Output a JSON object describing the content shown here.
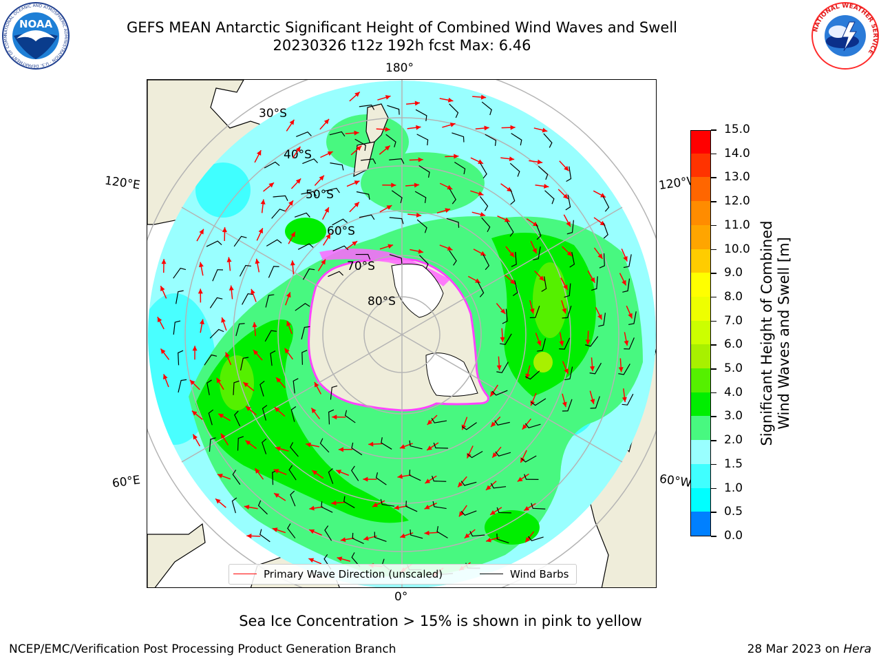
{
  "header": {
    "title_line1": "GEFS MEAN Antarctic Significant Height of Combined Wind Waves and Swell",
    "title_line2": "20230326 t12z 192h fcst   Max: 6.46"
  },
  "logos": {
    "noaa_text": "NOAA",
    "noaa_ring_text": "NATIONAL OCEANIC AND ATMOSPHERIC ADMINISTRATION · U.S. DEPARTMENT OF COMMERCE",
    "nws_ring_text": "NATIONAL WEATHER SERVICE"
  },
  "map": {
    "projection": "south-polar-stereographic",
    "longitude_labels": {
      "top": "180°",
      "bottom": "0°",
      "upper_left": "120°E",
      "lower_left": "60°E",
      "upper_right": "120°W",
      "lower_right": "60°W"
    },
    "latitude_labels": [
      "30°S",
      "40°S",
      "50°S",
      "60°S",
      "70°S",
      "80°S"
    ],
    "colors": {
      "land": "#efedda",
      "ice": "#ffffff",
      "ice_edge": "#ff44ff",
      "grid": "#b4b4b4",
      "arrow": "#ff0000",
      "barb": "#000000"
    },
    "legend": {
      "wave_label": "Primary Wave Direction (unscaled)",
      "wind_label": "Wind Barbs"
    },
    "note": "Sea Ice Concentration > 15% is shown in pink to yellow"
  },
  "colorbar": {
    "label_line1": "Significant Height of Combined",
    "label_line2": "Wind Waves and Swell [m]",
    "ticks": [
      "0.0",
      "0.5",
      "1.0",
      "1.5",
      "2.0",
      "3.0",
      "4.0",
      "5.0",
      "6.0",
      "7.0",
      "8.0",
      "9.0",
      "10.0",
      "11.0",
      "12.0",
      "13.0",
      "14.0",
      "15.0"
    ],
    "colors": [
      "#0000ff",
      "#0080ff",
      "#00ffff",
      "#40ffff",
      "#99ffff",
      "#48f880",
      "#00ee00",
      "#55f000",
      "#a8f000",
      "#ccff00",
      "#eeff00",
      "#ffff00",
      "#ffcc00",
      "#ffa500",
      "#ff8c00",
      "#ff6600",
      "#ff3300",
      "#ff0000"
    ]
  },
  "footer": {
    "left": "NCEP/EMC/Verification Post Processing Product Generation Branch",
    "right_prefix": "28 Mar 2023 on ",
    "right_host": "Hera"
  }
}
